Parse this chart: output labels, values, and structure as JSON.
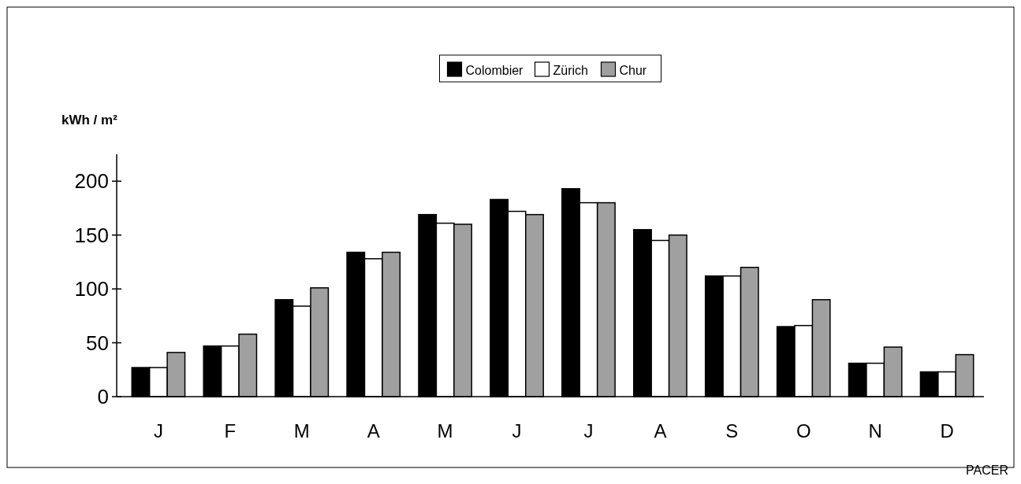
{
  "chart_data": {
    "type": "bar",
    "ylabel": "kWh / m²",
    "categories": [
      "J",
      "F",
      "M",
      "A",
      "M",
      "J",
      "J",
      "A",
      "S",
      "O",
      "N",
      "D"
    ],
    "series": [
      {
        "name": "Colombier",
        "color": "#000000",
        "values": [
          27,
          47,
          90,
          134,
          169,
          183,
          193,
          155,
          112,
          65,
          31,
          23
        ]
      },
      {
        "name": "Zürich",
        "color": "#ffffff",
        "values": [
          27,
          47,
          84,
          128,
          161,
          172,
          180,
          145,
          112,
          66,
          31,
          23
        ]
      },
      {
        "name": "Chur",
        "color": "#a0a0a0",
        "values": [
          41,
          58,
          101,
          134,
          160,
          169,
          180,
          150,
          120,
          90,
          46,
          39
        ]
      }
    ],
    "ylim": [
      0,
      225
    ],
    "yticks": [
      0,
      50,
      100,
      150,
      200
    ],
    "grid": false,
    "legend": "top",
    "annotations": [
      "PACER"
    ]
  }
}
